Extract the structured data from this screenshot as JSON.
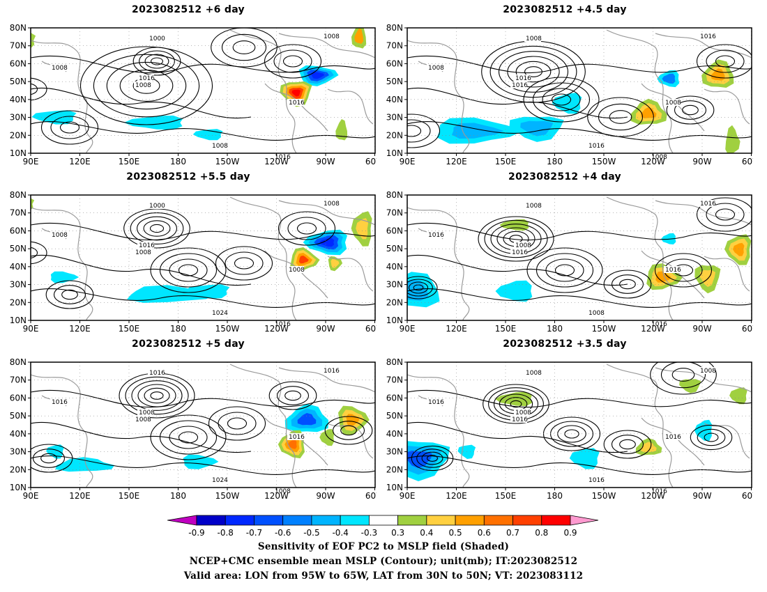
{
  "panels": [
    {
      "title": "2023082512  +6 day",
      "contours": [
        "1000",
        "1008",
        "1016",
        "1008",
        "1016",
        "1008",
        "1016",
        "1008"
      ]
    },
    {
      "title": "2023082512  +4.5 day",
      "contours": [
        "1008",
        "1008",
        "1016",
        "1016",
        "1008",
        "1016",
        "1008",
        "1016"
      ]
    },
    {
      "title": "2023082512  +5.5 day",
      "contours": [
        "1000",
        "1008",
        "1016",
        "1008",
        "1008",
        "1024",
        "1016",
        "1008"
      ]
    },
    {
      "title": "2023082512  +4 day",
      "contours": [
        "1008",
        "1016",
        "1008",
        "1016",
        "1016",
        "1008",
        "1016",
        "1016"
      ]
    },
    {
      "title": "2023082512  +5 day",
      "contours": [
        "1016",
        "1016",
        "1008",
        "1008",
        "1016",
        "1024",
        "1008",
        "1016"
      ]
    },
    {
      "title": "2023082512  +3.5 day",
      "contours": [
        "1008",
        "1016",
        "1008",
        "1016",
        "1016",
        "1016",
        "1016",
        "1008"
      ]
    }
  ],
  "axes": {
    "lat_labels": [
      "80N",
      "70N",
      "60N",
      "50N",
      "40N",
      "30N",
      "20N",
      "10N"
    ],
    "lon_labels": [
      "90E",
      "120E",
      "150E",
      "180",
      "150W",
      "120W",
      "90W",
      "60W"
    ]
  },
  "colorbar": {
    "labels": [
      "-0.9",
      "-0.8",
      "-0.7",
      "-0.6",
      "-0.5",
      "-0.4",
      "-0.3",
      "0.3",
      "0.4",
      "0.5",
      "0.6",
      "0.7",
      "0.8",
      "0.9"
    ],
    "colors": [
      "#c000c0",
      "#0000c8",
      "#0028ff",
      "#0050ff",
      "#0080ff",
      "#00b4ff",
      "#00e6ff",
      "#ffffff",
      "#a0d040",
      "#ffd040",
      "#ffa000",
      "#ff7000",
      "#ff4000",
      "#ff0000",
      "#ff9ad0"
    ]
  },
  "caption": {
    "line1": "Sensitivity of EOF PC2 to MSLP field (Shaded)",
    "line2": "NCEP+CMC ensemble mean MSLP (Contour); unit(mb); IT:2023082512",
    "line3": "Valid area: LON from 95W to 65W, LAT from 30N to 50N; VT: 2023083112"
  }
}
